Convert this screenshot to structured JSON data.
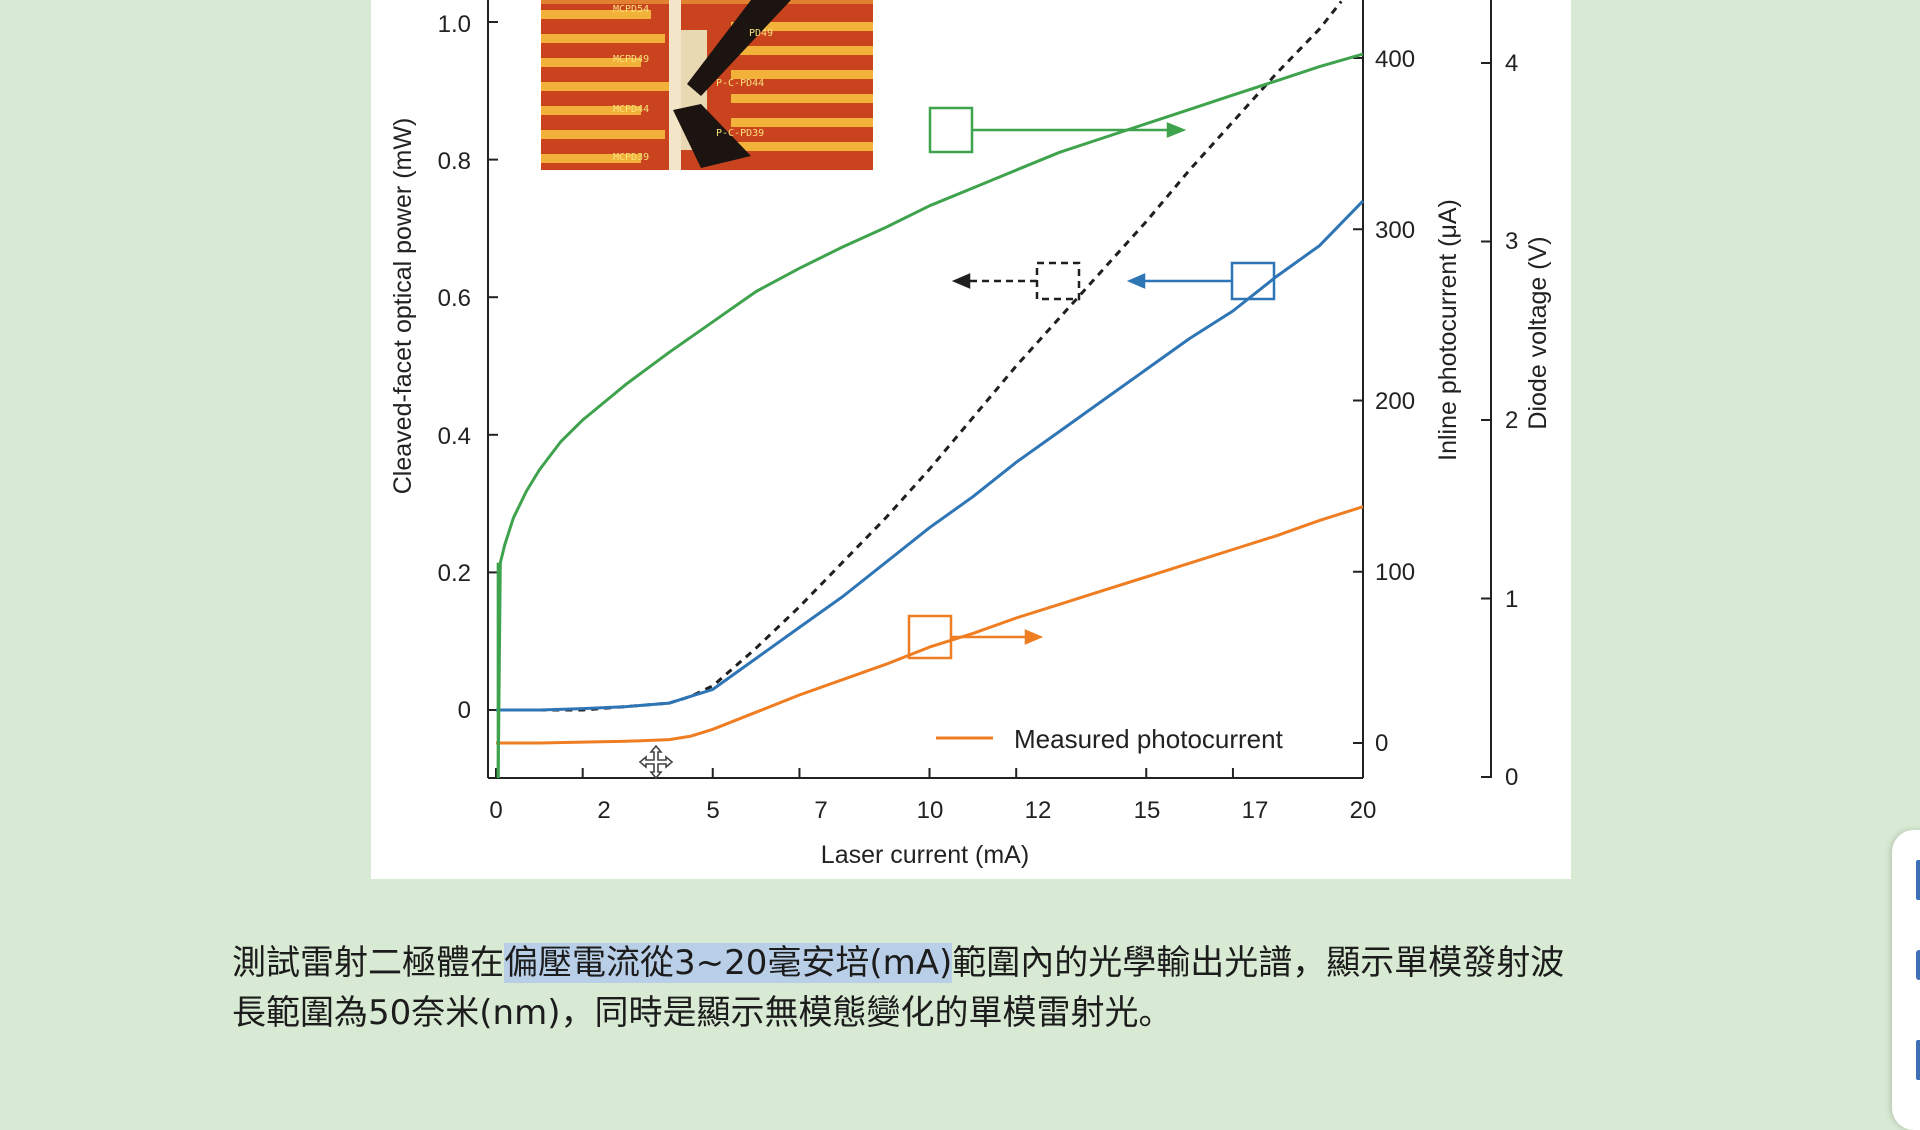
{
  "chart_data": {
    "type": "line",
    "xlabel": "Laser current (mA)",
    "xlim": [
      0,
      20
    ],
    "x_ticks": [
      "0",
      "2",
      "5",
      "7",
      "10",
      "12",
      "15",
      "17",
      "20"
    ],
    "axes": {
      "left": {
        "label": "Cleaved-facet optical power (mW)",
        "ylim": [
          -0.1,
          1.0
        ],
        "ticks": [
          "0",
          "0.2",
          "0.4",
          "0.6",
          "0.8",
          "1.0"
        ]
      },
      "right1": {
        "label": "Inline photocurrent (μA)",
        "ylim": [
          0,
          440
        ],
        "ticks": [
          "0",
          "100",
          "200",
          "300",
          "400"
        ]
      },
      "right2": {
        "label": "Diode voltage (V)",
        "ylim": [
          0,
          4.3
        ],
        "ticks": [
          "0",
          "1",
          "2",
          "3",
          "4"
        ]
      }
    },
    "series": [
      {
        "axis": "left",
        "color": "#1f1f1f",
        "style": "dashed",
        "x": [
          1,
          2,
          3,
          4,
          4.5,
          5,
          6,
          7,
          8,
          9,
          10,
          11,
          12,
          13,
          14,
          15,
          16,
          17,
          18,
          19,
          19.5
        ],
        "y": [
          0.0,
          0.0,
          0.005,
          0.01,
          0.02,
          0.035,
          0.09,
          0.15,
          0.215,
          0.28,
          0.35,
          0.425,
          0.5,
          0.57,
          0.64,
          0.71,
          0.785,
          0.855,
          0.925,
          0.99,
          1.03
        ]
      },
      {
        "axis": "left",
        "color": "#2e75b6",
        "style": "solid",
        "x": [
          0,
          1,
          2,
          3,
          4,
          4.5,
          5,
          6,
          7,
          8,
          9,
          10,
          11,
          12,
          13,
          14,
          15,
          16,
          17,
          18,
          19,
          20
        ],
        "y": [
          0.0,
          0.0,
          0.002,
          0.005,
          0.01,
          0.02,
          0.03,
          0.075,
          0.12,
          0.165,
          0.215,
          0.265,
          0.31,
          0.36,
          0.405,
          0.45,
          0.495,
          0.54,
          0.58,
          0.63,
          0.675,
          0.74
        ]
      },
      {
        "axis": "right1",
        "color": "#ef7d22",
        "style": "solid",
        "name": "Measured photocurrent",
        "x": [
          0,
          1,
          2,
          3,
          4,
          4.5,
          5,
          6,
          7,
          8,
          9,
          10,
          11,
          12,
          13,
          14,
          15,
          16,
          17,
          18,
          19,
          20
        ],
        "y": [
          0,
          0,
          0.5,
          1,
          2,
          4,
          8,
          18,
          28,
          37,
          46,
          56,
          64,
          73,
          81,
          89,
          97,
          105,
          113,
          121,
          130,
          138
        ]
      },
      {
        "axis": "right2",
        "color": "#3fa34d",
        "style": "solid",
        "x": [
          0.05,
          0.1,
          0.2,
          0.4,
          0.7,
          1,
          1.5,
          2,
          2.5,
          3,
          4,
          5,
          6,
          7,
          8,
          9,
          10,
          11,
          12,
          13,
          14,
          15,
          16,
          17,
          18,
          19,
          20
        ],
        "y": [
          0.0,
          1.2,
          1.3,
          1.45,
          1.6,
          1.72,
          1.88,
          2.0,
          2.1,
          2.2,
          2.38,
          2.55,
          2.72,
          2.85,
          2.97,
          3.08,
          3.2,
          3.3,
          3.4,
          3.5,
          3.58,
          3.66,
          3.74,
          3.82,
          3.9,
          3.98,
          4.05
        ]
      }
    ],
    "legend": {
      "position": "bottom-right"
    }
  },
  "inset_labels": [
    "MCPD54",
    "MCPD49",
    "MCPD44",
    "MCPD39",
    "PD49",
    "P-C-PD44",
    "P-C-PD39"
  ],
  "caption": {
    "before": "測試雷射二極體在",
    "highlight": "偏壓電流從3~20毫安培(mA)",
    "after": "範圍內的光學輸出光譜，顯示單模發射波",
    "line2": "長範圍為50奈米(nm)，同時是顯示無模態變化的單模雷射光。"
  },
  "colors": {
    "page_bg": "#d8ead3",
    "highlight": "#b9cfe8"
  }
}
